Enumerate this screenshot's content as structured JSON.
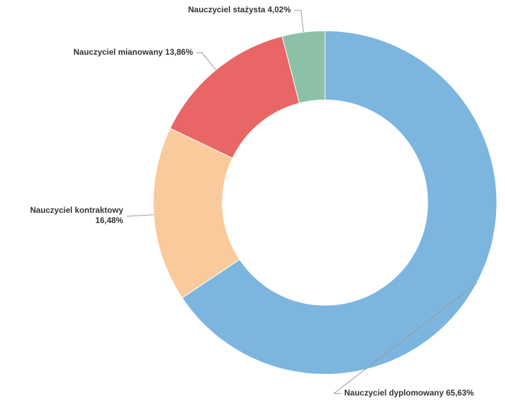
{
  "chart_data": {
    "type": "pie",
    "donut": true,
    "categories": [
      "Nauczyciel dyplomowany",
      "Nauczyciel kontraktowy",
      "Nauczyciel mianowany",
      "Nauczyciel stażysta"
    ],
    "values": [
      65.63,
      16.48,
      13.86,
      4.02
    ],
    "value_labels": [
      "65,63%",
      "16,48%",
      "13,86%",
      "4,02%"
    ],
    "colors": [
      "#7cb6df",
      "#f9cb9c",
      "#e86666",
      "#8cc1a7"
    ]
  }
}
